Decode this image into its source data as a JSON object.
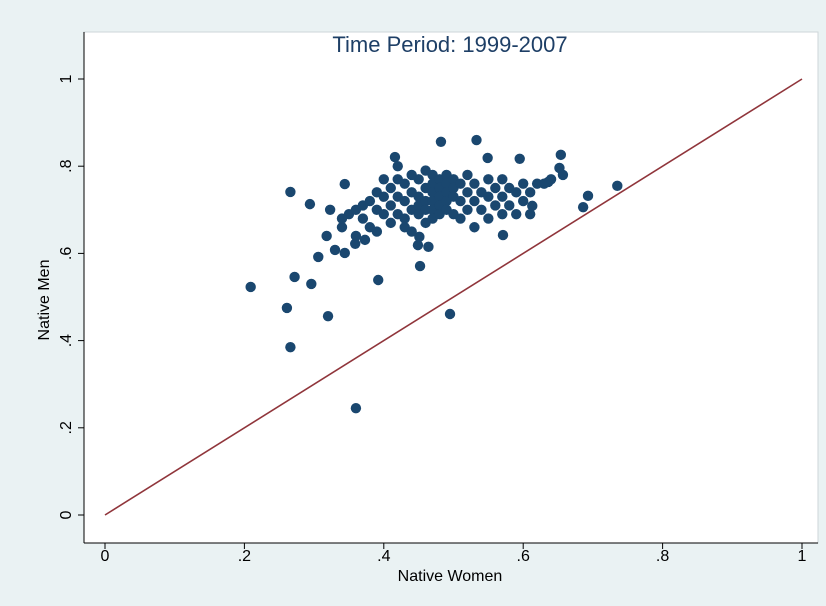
{
  "chart_data": {
    "type": "scatter",
    "title": "Time Period: 1999-2007",
    "x_label": "Native Women",
    "y_label": "Native Men",
    "xlim": [
      0,
      1
    ],
    "ylim": [
      0,
      1
    ],
    "xticks": [
      0,
      {
        "value": 0.2,
        "label": ".2"
      },
      {
        "value": 0.4,
        "label": ".4"
      },
      {
        "value": 0.6,
        "label": ".6"
      },
      {
        "value": 0.8,
        "label": ".8"
      },
      1
    ],
    "yticks": [
      0,
      {
        "value": 0.2,
        "label": ".2"
      },
      {
        "value": 0.4,
        "label": ".4"
      },
      {
        "value": 0.6,
        "label": ".6"
      },
      {
        "value": 0.8,
        "label": ".8"
      },
      1
    ],
    "grid": false,
    "series": [
      {
        "type": "scatter",
        "color": "#1a476f",
        "x": [
          0.209,
          0.261,
          0.266,
          0.272,
          0.266,
          0.296,
          0.294,
          0.306,
          0.32,
          0.36,
          0.392,
          0.495,
          0.452,
          0.482,
          0.533,
          0.416,
          0.549,
          0.595,
          0.654,
          0.652,
          0.657,
          0.636,
          0.686,
          0.693,
          0.735,
          0.613,
          0.571,
          0.344,
          0.323,
          0.318,
          0.33,
          0.344,
          0.359,
          0.373,
          0.449,
          0.464,
          0.451,
          0.35,
          0.36,
          0.37,
          0.37,
          0.38,
          0.39,
          0.39,
          0.4,
          0.4,
          0.4,
          0.41,
          0.41,
          0.41,
          0.42,
          0.42,
          0.42,
          0.43,
          0.43,
          0.43,
          0.43,
          0.44,
          0.44,
          0.44,
          0.45,
          0.45,
          0.45,
          0.45,
          0.46,
          0.46,
          0.46,
          0.46,
          0.46,
          0.47,
          0.47,
          0.47,
          0.47,
          0.47,
          0.47,
          0.48,
          0.48,
          0.48,
          0.48,
          0.48,
          0.49,
          0.49,
          0.49,
          0.49,
          0.49,
          0.5,
          0.5,
          0.5,
          0.5,
          0.51,
          0.51,
          0.51,
          0.52,
          0.52,
          0.53,
          0.53,
          0.53,
          0.54,
          0.54,
          0.55,
          0.55,
          0.56,
          0.56,
          0.57,
          0.57,
          0.57,
          0.58,
          0.58,
          0.59,
          0.59,
          0.6,
          0.6,
          0.61,
          0.61,
          0.62,
          0.63,
          0.64,
          0.36,
          0.34,
          0.38,
          0.39,
          0.42,
          0.44,
          0.52,
          0.55,
          0.34
        ],
        "values": [
          0.523,
          0.475,
          0.385,
          0.546,
          0.741,
          0.53,
          0.713,
          0.592,
          0.456,
          0.245,
          0.539,
          0.461,
          0.571,
          0.856,
          0.86,
          0.821,
          0.819,
          0.817,
          0.826,
          0.796,
          0.78,
          0.764,
          0.706,
          0.732,
          0.755,
          0.709,
          0.642,
          0.759,
          0.7,
          0.64,
          0.608,
          0.601,
          0.622,
          0.631,
          0.619,
          0.615,
          0.638,
          0.69,
          0.7,
          0.71,
          0.68,
          0.72,
          0.74,
          0.7,
          0.77,
          0.73,
          0.69,
          0.75,
          0.71,
          0.67,
          0.77,
          0.73,
          0.69,
          0.76,
          0.72,
          0.68,
          0.66,
          0.74,
          0.7,
          0.65,
          0.77,
          0.73,
          0.71,
          0.69,
          0.79,
          0.75,
          0.72,
          0.7,
          0.67,
          0.78,
          0.76,
          0.74,
          0.72,
          0.7,
          0.68,
          0.77,
          0.75,
          0.73,
          0.71,
          0.69,
          0.78,
          0.76,
          0.74,
          0.72,
          0.7,
          0.77,
          0.75,
          0.73,
          0.69,
          0.76,
          0.72,
          0.68,
          0.74,
          0.7,
          0.76,
          0.72,
          0.66,
          0.74,
          0.7,
          0.77,
          0.73,
          0.75,
          0.71,
          0.77,
          0.73,
          0.69,
          0.75,
          0.71,
          0.74,
          0.69,
          0.76,
          0.72,
          0.74,
          0.69,
          0.76,
          0.76,
          0.77,
          0.64,
          0.66,
          0.66,
          0.65,
          0.8,
          0.78,
          0.78,
          0.68,
          0.68
        ]
      },
      {
        "type": "line",
        "color": "#90353b",
        "x": [
          0,
          1
        ],
        "values": [
          0,
          1
        ]
      }
    ]
  }
}
